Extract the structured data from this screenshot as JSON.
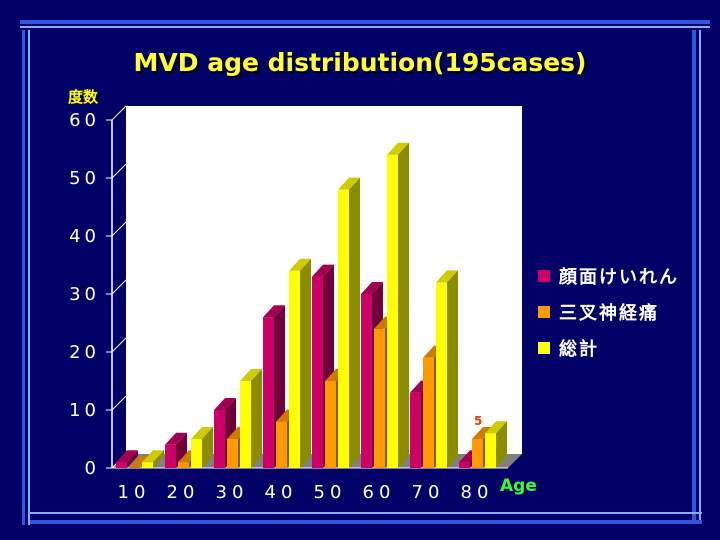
{
  "colors": {
    "background": "#000066",
    "title": "#FFFF33",
    "ylabel": "#FFFF00",
    "xlabel": "#33FF33",
    "axis_text": "#FFFFFF",
    "plot_wall": "#FFFFFF",
    "floor": "#808080",
    "frame_blue": "#3355DD",
    "frame_light": "#88AAFF",
    "annotation": "#FF3300"
  },
  "chart_data": {
    "type": "bar",
    "title": "MVD age distribution(195cases)",
    "ylabel": "度数",
    "xlabel": "Age",
    "categories": [
      "10",
      "20",
      "30",
      "40",
      "50",
      "60",
      "70",
      "80"
    ],
    "ylim": [
      0,
      60
    ],
    "yticks": [
      "0",
      "10",
      "20",
      "30",
      "40",
      "50",
      "60"
    ],
    "legend_position": "right",
    "series": [
      {
        "name": "顔面けいれん",
        "color": "#CC0066",
        "values": [
          1,
          4,
          10,
          26,
          33,
          30,
          13,
          1
        ]
      },
      {
        "name": "三叉神経痛",
        "color": "#FF9900",
        "values": [
          0,
          1,
          5,
          8,
          15,
          24,
          19,
          5
        ]
      },
      {
        "name": "総計",
        "color": "#FFFF00",
        "values": [
          1,
          5,
          15,
          34,
          48,
          54,
          32,
          6
        ]
      }
    ],
    "annotations": [
      {
        "text": "5",
        "category": "80",
        "series": "三叉神経痛"
      }
    ]
  }
}
